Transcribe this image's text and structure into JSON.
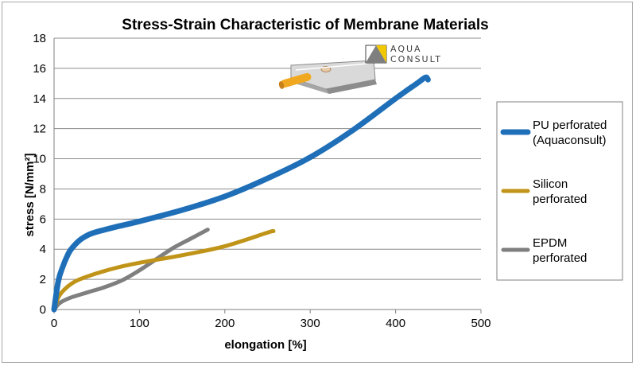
{
  "chart_data": {
    "type": "line",
    "title": "Stress-Strain Characteristic of Membrane Materials",
    "xlabel": "elongation [%]",
    "ylabel": "stress [N/mm²]",
    "xlim": [
      0,
      500
    ],
    "ylim": [
      0,
      18
    ],
    "xticks": [
      0,
      100,
      200,
      300,
      400,
      500
    ],
    "yticks": [
      0,
      2,
      4,
      6,
      8,
      10,
      12,
      14,
      16,
      18
    ],
    "grid": "horizontal",
    "legend_position": "right",
    "series": [
      {
        "name_lines": [
          "PU perforated",
          "(Aquaconsult)"
        ],
        "color": "#1f6fb8",
        "x": [
          0,
          5,
          10,
          15,
          20,
          30,
          40,
          50,
          70,
          100,
          150,
          200,
          250,
          300,
          350,
          400,
          425,
          435,
          438
        ],
        "y": [
          0,
          1.9,
          2.8,
          3.5,
          4.0,
          4.6,
          4.95,
          5.15,
          5.45,
          5.85,
          6.6,
          7.5,
          8.7,
          10.1,
          11.9,
          14.0,
          15.0,
          15.4,
          15.25
        ]
      },
      {
        "name_lines": [
          "Silicon",
          "perforated"
        ],
        "color": "#c09418",
        "x": [
          0,
          5,
          10,
          20,
          30,
          50,
          75,
          100,
          150,
          200,
          250,
          257
        ],
        "y": [
          0,
          0.8,
          1.2,
          1.7,
          2.0,
          2.4,
          2.8,
          3.1,
          3.6,
          4.2,
          5.1,
          5.2
        ]
      },
      {
        "name_lines": [
          "EPDM",
          "perforated"
        ],
        "color": "#7f7f7f",
        "x": [
          0,
          5,
          10,
          20,
          40,
          60,
          80,
          100,
          120,
          140,
          160,
          180
        ],
        "y": [
          0,
          0.35,
          0.55,
          0.8,
          1.15,
          1.5,
          1.95,
          2.6,
          3.35,
          4.1,
          4.7,
          5.3
        ]
      }
    ]
  },
  "logo": {
    "line1": "AQUA",
    "line2": "CONSULT",
    "colors": {
      "yellow": "#f2c800",
      "gray": "#7f7f7f",
      "dark": "#404040"
    }
  }
}
